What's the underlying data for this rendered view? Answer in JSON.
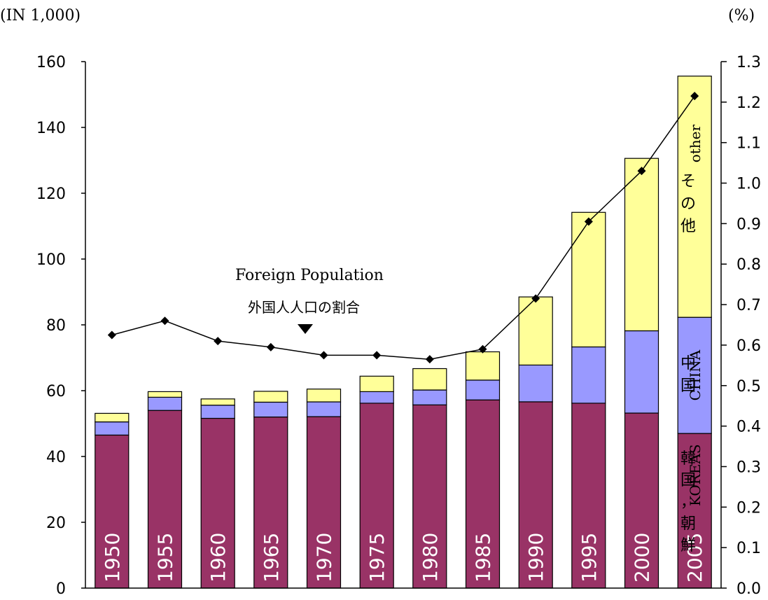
{
  "units": {
    "left": "(IN 1,000)",
    "right": "(%)"
  },
  "annotation": {
    "en": "Foreign Population",
    "ja": "外国人人口の割合"
  },
  "segment_labels": {
    "other": {
      "en": "other",
      "ja": [
        "そ",
        "の",
        "他"
      ]
    },
    "china": {
      "en": "CHINA",
      "ja": [
        "中",
        "国"
      ]
    },
    "koreas": {
      "en": "KOREAS",
      "ja": [
        "韓",
        "国",
        "，",
        "朝",
        "鮮"
      ]
    }
  },
  "colors": {
    "koreas": "#993366",
    "china": "#9999ff",
    "other": "#ffff99",
    "line": "#000000"
  },
  "chart_data": {
    "type": "bar",
    "stacked": true,
    "categories": [
      "1950",
      "1955",
      "1960",
      "1965",
      "1970",
      "1975",
      "1980",
      "1985",
      "1990",
      "1995",
      "2000",
      "2005"
    ],
    "series": [
      {
        "name": "KOREAS",
        "values": [
          46.5,
          54.0,
          51.6,
          52.0,
          52.1,
          56.2,
          55.7,
          57.2,
          56.6,
          56.2,
          53.2,
          47.0
        ]
      },
      {
        "name": "CHINA",
        "values": [
          4.0,
          4.0,
          4.0,
          4.5,
          4.5,
          3.5,
          4.5,
          6.0,
          11.2,
          17.1,
          25.0,
          35.3
        ]
      },
      {
        "name": "other",
        "values": [
          2.6,
          1.7,
          1.9,
          3.3,
          3.9,
          4.7,
          6.5,
          8.6,
          20.7,
          40.9,
          52.4,
          73.3
        ]
      }
    ],
    "line_series": {
      "name": "外国人人口の割合",
      "axis": "right",
      "values": [
        0.625,
        0.66,
        0.61,
        0.595,
        0.575,
        0.575,
        0.565,
        0.59,
        0.715,
        0.905,
        1.03,
        1.215
      ]
    },
    "y_left": {
      "ylim": [
        0,
        160
      ],
      "ticks": [
        0,
        20,
        40,
        60,
        80,
        100,
        120,
        140,
        160
      ]
    },
    "y_right": {
      "ylim": [
        0.0,
        1.3
      ],
      "ticks": [
        "0.0",
        "0.1",
        "0.2",
        "0.3",
        "0.4",
        "0.5",
        "0.6",
        "0.7",
        "0.8",
        "0.9",
        "1.0",
        "1.1",
        "1.2",
        "1.3"
      ]
    },
    "grid": false
  }
}
